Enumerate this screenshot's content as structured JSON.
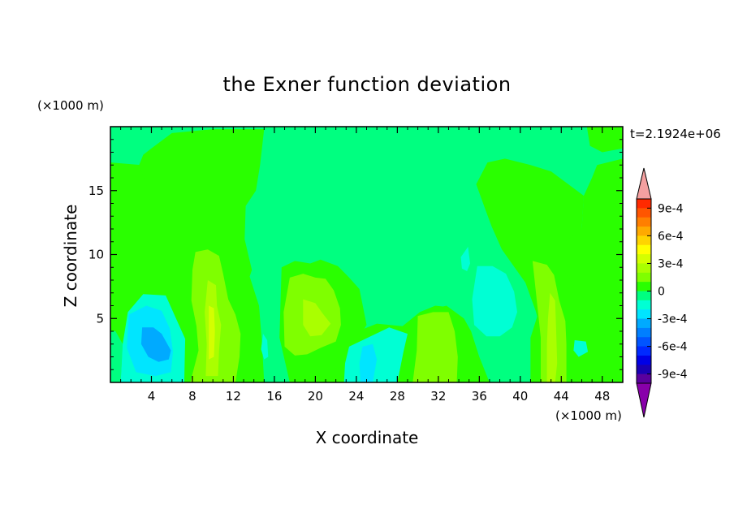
{
  "chart_data": {
    "type": "heatmap",
    "title": "the Exner function deviation",
    "xlabel": "X coordinate",
    "ylabel": "Z coordinate",
    "x_unit_label": "(×1000 m)",
    "y_unit_label": "(×1000 m)",
    "time_label": "t=2.1924e+06",
    "xlim": [
      0,
      50
    ],
    "ylim": [
      0,
      20
    ],
    "x_ticks": [
      4,
      8,
      12,
      16,
      20,
      24,
      28,
      32,
      36,
      40,
      44,
      48
    ],
    "y_ticks": [
      5,
      10,
      15
    ],
    "colorbar": {
      "ticks": [
        "9e-4",
        "6e-4",
        "3e-4",
        "0",
        "-3e-4",
        "-6e-4",
        "-9e-4"
      ],
      "levels": [
        {
          "lo": 0.0009,
          "hi": 0.001,
          "color": "#ff2a00"
        },
        {
          "lo": 0.0008,
          "hi": 0.0009,
          "color": "#ff5500"
        },
        {
          "lo": 0.0007,
          "hi": 0.0008,
          "color": "#ff7f00"
        },
        {
          "lo": 0.0006,
          "hi": 0.0007,
          "color": "#ffaa00"
        },
        {
          "lo": 0.0005,
          "hi": 0.0006,
          "color": "#ffd400"
        },
        {
          "lo": 0.0004,
          "hi": 0.0005,
          "color": "#ffff00"
        },
        {
          "lo": 0.0003,
          "hi": 0.0004,
          "color": "#d4ff00"
        },
        {
          "lo": 0.0002,
          "hi": 0.0003,
          "color": "#aaff00"
        },
        {
          "lo": 0.0001,
          "hi": 0.0002,
          "color": "#7fff00"
        },
        {
          "lo": 0.0,
          "hi": 0.0001,
          "color": "#2aff00"
        },
        {
          "lo": -0.0001,
          "hi": 0.0,
          "color": "#00ff80"
        },
        {
          "lo": -0.0002,
          "hi": -0.0001,
          "color": "#00ffd4"
        },
        {
          "lo": -0.0003,
          "hi": -0.0002,
          "color": "#00e5ff"
        },
        {
          "lo": -0.0004,
          "hi": -0.0003,
          "color": "#00aaff"
        },
        {
          "lo": -0.0005,
          "hi": -0.0004,
          "color": "#007fff"
        },
        {
          "lo": -0.0006,
          "hi": -0.0005,
          "color": "#0055ff"
        },
        {
          "lo": -0.0007,
          "hi": -0.0006,
          "color": "#002aff"
        },
        {
          "lo": -0.0008,
          "hi": -0.0007,
          "color": "#0000e6"
        },
        {
          "lo": -0.0009,
          "hi": -0.0008,
          "color": "#1a00b4"
        },
        {
          "lo": -0.001,
          "hi": -0.0009,
          "color": "#5a009e"
        }
      ],
      "over_color": "#f4a0a0",
      "under_color": "#8800aa"
    },
    "regions": [
      {
        "level": 5e-05,
        "points": [
          [
            0,
            0
          ],
          [
            50,
            0
          ],
          [
            50,
            20
          ],
          [
            0,
            20
          ]
        ]
      },
      {
        "level": -5e-05,
        "points": [
          [
            0,
            17.2
          ],
          [
            3,
            17
          ],
          [
            4,
            15.2
          ],
          [
            5.5,
            13
          ],
          [
            10,
            11
          ],
          [
            11,
            9
          ],
          [
            13.5,
            8.5
          ],
          [
            14.5,
            6
          ],
          [
            14.8,
            3
          ],
          [
            15,
            0
          ],
          [
            20,
            0
          ],
          [
            21,
            1.8
          ],
          [
            23.5,
            3.8
          ],
          [
            26,
            4.6
          ],
          [
            28.5,
            4.4
          ],
          [
            30.2,
            5.5
          ],
          [
            32.8,
            6
          ],
          [
            34.5,
            5
          ],
          [
            35.2,
            4
          ],
          [
            36,
            2
          ],
          [
            37,
            0
          ],
          [
            41,
            0
          ],
          [
            41,
            3.5
          ],
          [
            42.3,
            6.8
          ],
          [
            43.3,
            9.5
          ],
          [
            44,
            11.2
          ],
          [
            46,
            12
          ],
          [
            46.2,
            14.6
          ],
          [
            47,
            16
          ],
          [
            47.5,
            17
          ],
          [
            50,
            17.5
          ],
          [
            50,
            20
          ],
          [
            0,
            20
          ]
        ]
      },
      {
        "level": -5e-05,
        "points": [
          [
            0,
            0
          ],
          [
            1,
            0
          ],
          [
            1.2,
            3
          ],
          [
            0.5,
            4
          ],
          [
            0,
            4
          ]
        ]
      },
      {
        "level": 5e-05,
        "points": [
          [
            2.8,
            17
          ],
          [
            3.5,
            15.5
          ],
          [
            4,
            13.8
          ],
          [
            3.3,
            11.2
          ],
          [
            4.8,
            10.2
          ],
          [
            6.2,
            8.4
          ],
          [
            7.5,
            6.5
          ],
          [
            8.3,
            4
          ],
          [
            8.8,
            0
          ],
          [
            14.3,
            0
          ],
          [
            14,
            3.1
          ],
          [
            14.2,
            6.5
          ],
          [
            13.4,
            7.8
          ],
          [
            13.8,
            8.8
          ],
          [
            13.1,
            11.2
          ],
          [
            13.2,
            13.8
          ],
          [
            14.2,
            15
          ],
          [
            14.6,
            17
          ],
          [
            15,
            19.8
          ],
          [
            10,
            19.8
          ],
          [
            6,
            19.5
          ],
          [
            4,
            18.3
          ],
          [
            3.2,
            17.8
          ]
        ]
      },
      {
        "level": 5e-05,
        "points": [
          [
            16.7,
            9
          ],
          [
            18,
            9.5
          ],
          [
            19.5,
            9.3
          ],
          [
            20.5,
            9.6
          ],
          [
            22.2,
            9.1
          ],
          [
            23.3,
            8.2
          ],
          [
            24.3,
            7.3
          ],
          [
            25,
            4.5
          ],
          [
            24.3,
            3.6
          ],
          [
            23.2,
            3.1
          ],
          [
            22.4,
            1.8
          ],
          [
            21.8,
            0.8
          ],
          [
            20,
            0
          ],
          [
            17.5,
            0
          ],
          [
            16.5,
            3.5
          ]
        ]
      },
      {
        "level": 5e-05,
        "points": [
          [
            29.2,
            0
          ],
          [
            30.2,
            5.5
          ],
          [
            31.7,
            6
          ],
          [
            32.9,
            5.9
          ],
          [
            33.9,
            4.2
          ],
          [
            34.5,
            2
          ],
          [
            35,
            0
          ]
        ]
      },
      {
        "level": 5e-05,
        "points": [
          [
            36.8,
            17.2
          ],
          [
            38.5,
            17.5
          ],
          [
            41,
            17
          ],
          [
            43,
            16.5
          ],
          [
            46.2,
            14.6
          ],
          [
            46,
            12
          ],
          [
            44.2,
            10.9
          ],
          [
            44.3,
            8.7
          ],
          [
            45.3,
            7.5
          ],
          [
            46.5,
            6.3
          ],
          [
            47.5,
            4.3
          ],
          [
            48.3,
            3.7
          ],
          [
            50,
            3.8
          ],
          [
            50,
            0
          ],
          [
            42,
            0
          ],
          [
            42.2,
            3.5
          ],
          [
            41.5,
            5.6
          ],
          [
            40.5,
            7.8
          ],
          [
            38.2,
            10.4
          ],
          [
            37.2,
            12.2
          ],
          [
            36.6,
            13.5
          ],
          [
            35.7,
            15.5
          ]
        ]
      },
      {
        "level": 5e-05,
        "points": [
          [
            46.5,
            20
          ],
          [
            46.8,
            18.5
          ],
          [
            48,
            18
          ],
          [
            50,
            18.3
          ],
          [
            50,
            20
          ]
        ]
      },
      {
        "level": 0.00015,
        "points": [
          [
            8.3,
            10.2
          ],
          [
            9.5,
            10.4
          ],
          [
            10.6,
            9.9
          ],
          [
            11,
            8.5
          ],
          [
            11.5,
            6.5
          ],
          [
            12.2,
            5.3
          ],
          [
            12.7,
            3.8
          ],
          [
            12.6,
            2
          ],
          [
            12.2,
            0
          ],
          [
            7.8,
            0
          ],
          [
            8.6,
            2.5
          ],
          [
            8.4,
            4.4
          ],
          [
            7.9,
            6.4
          ],
          [
            8,
            8.8
          ]
        ]
      },
      {
        "level": 0.00015,
        "points": [
          [
            17.5,
            8.2
          ],
          [
            18.8,
            8.5
          ],
          [
            20,
            8.2
          ],
          [
            21,
            8.1
          ],
          [
            21.8,
            7.2
          ],
          [
            22.4,
            5.8
          ],
          [
            22.5,
            4.5
          ],
          [
            22,
            3.2
          ],
          [
            20.5,
            2.7
          ],
          [
            19.2,
            2.2
          ],
          [
            18,
            2.1
          ],
          [
            17,
            2.8
          ],
          [
            16.9,
            5.5
          ]
        ]
      },
      {
        "level": 0.00015,
        "points": [
          [
            41.2,
            9.5
          ],
          [
            42.6,
            9.2
          ],
          [
            43.3,
            8.4
          ],
          [
            43.8,
            6.4
          ],
          [
            44.4,
            4.8
          ],
          [
            44.5,
            3
          ],
          [
            44.5,
            0
          ],
          [
            42,
            0
          ],
          [
            42,
            3.5
          ]
        ]
      },
      {
        "level": 0.00015,
        "points": [
          [
            30,
            5.2
          ],
          [
            31.5,
            5.5
          ],
          [
            33,
            5.5
          ],
          [
            33.6,
            4
          ],
          [
            33.9,
            2
          ],
          [
            33.8,
            0
          ],
          [
            29.5,
            0
          ],
          [
            29.9,
            2.5
          ]
        ]
      },
      {
        "level": 0.00025,
        "points": [
          [
            9.5,
            8
          ],
          [
            10.3,
            7.6
          ],
          [
            10.4,
            6
          ],
          [
            10.8,
            4.5
          ],
          [
            10.6,
            2.5
          ],
          [
            10.5,
            0.5
          ],
          [
            9.3,
            0.5
          ],
          [
            9.4,
            3
          ],
          [
            9.2,
            5.5
          ]
        ]
      },
      {
        "level": 0.00025,
        "points": [
          [
            18.8,
            6.5
          ],
          [
            20,
            6.2
          ],
          [
            20.7,
            5.4
          ],
          [
            21.5,
            4.6
          ],
          [
            20.6,
            3.7
          ],
          [
            19.5,
            3.6
          ],
          [
            18.8,
            4.5
          ]
        ]
      },
      {
        "level": 0.00025,
        "points": [
          [
            42.9,
            7
          ],
          [
            43.4,
            6.4
          ],
          [
            43.5,
            4
          ],
          [
            43.6,
            1.5
          ],
          [
            43.4,
            0
          ],
          [
            42.6,
            0
          ],
          [
            42.6,
            3
          ],
          [
            42.7,
            5
          ]
        ]
      },
      {
        "level": 0.00035,
        "points": [
          [
            9.6,
            6
          ],
          [
            10.1,
            5.8
          ],
          [
            10.2,
            4
          ],
          [
            10.1,
            2
          ],
          [
            9.6,
            1.8
          ],
          [
            9.6,
            4.5
          ]
        ]
      },
      {
        "level": -0.00015,
        "points": [
          [
            1,
            0
          ],
          [
            1.2,
            3
          ],
          [
            1.7,
            5.5
          ],
          [
            3.2,
            6.9
          ],
          [
            5.4,
            6.8
          ],
          [
            6.4,
            5
          ],
          [
            7.3,
            3.4
          ],
          [
            7.2,
            0
          ]
        ]
      },
      {
        "level": -0.00015,
        "points": [
          [
            23.3,
            2.8
          ],
          [
            24.6,
            3.3
          ],
          [
            27.2,
            4.3
          ],
          [
            29,
            3.8
          ],
          [
            28.6,
            2.4
          ],
          [
            28,
            0
          ],
          [
            22.8,
            0
          ],
          [
            22.9,
            1.5
          ]
        ]
      },
      {
        "level": -0.00015,
        "points": [
          [
            35.8,
            9.1
          ],
          [
            37.3,
            9.1
          ],
          [
            38.6,
            8.5
          ],
          [
            39.4,
            7.1
          ],
          [
            39.7,
            5.5
          ],
          [
            39.2,
            4.3
          ],
          [
            38,
            3.6
          ],
          [
            36.7,
            3.6
          ],
          [
            35.5,
            4.5
          ],
          [
            35.3,
            6.5
          ]
        ]
      },
      {
        "level": -0.00015,
        "points": [
          [
            34.2,
            9.8
          ],
          [
            34.9,
            10.6
          ],
          [
            35.1,
            9.3
          ],
          [
            34.8,
            8.7
          ],
          [
            34.3,
            8.9
          ]
        ]
      },
      {
        "level": -0.00015,
        "points": [
          [
            14.9,
            3.8
          ],
          [
            15.3,
            3.3
          ],
          [
            15.4,
            2
          ],
          [
            15,
            1.8
          ],
          [
            14.7,
            2.6
          ]
        ]
      },
      {
        "level": -0.00015,
        "points": [
          [
            45.3,
            3.3
          ],
          [
            46.4,
            3.2
          ],
          [
            46.6,
            2.4
          ],
          [
            45.7,
            2
          ],
          [
            45.2,
            2.5
          ]
        ]
      },
      {
        "level": -0.00025,
        "points": [
          [
            1.8,
            5.3
          ],
          [
            3.5,
            6
          ],
          [
            5,
            5.6
          ],
          [
            5.8,
            4.2
          ],
          [
            6.1,
            2.4
          ],
          [
            5.9,
            0.8
          ],
          [
            4.4,
            0.5
          ],
          [
            2.5,
            0.8
          ],
          [
            1.6,
            2.7
          ]
        ]
      },
      {
        "level": -0.00025,
        "points": [
          [
            24.6,
            2.8
          ],
          [
            25.6,
            3
          ],
          [
            26,
            1.8
          ],
          [
            25.6,
            0
          ],
          [
            24.4,
            0
          ],
          [
            24.3,
            1.5
          ]
        ]
      },
      {
        "level": -0.00035,
        "points": [
          [
            3.1,
            4.3
          ],
          [
            4.2,
            4.3
          ],
          [
            5,
            3.8
          ],
          [
            5.9,
            2.5
          ],
          [
            5.7,
            1.8
          ],
          [
            4.7,
            1.6
          ],
          [
            3.7,
            2
          ],
          [
            3,
            3
          ]
        ]
      }
    ]
  }
}
